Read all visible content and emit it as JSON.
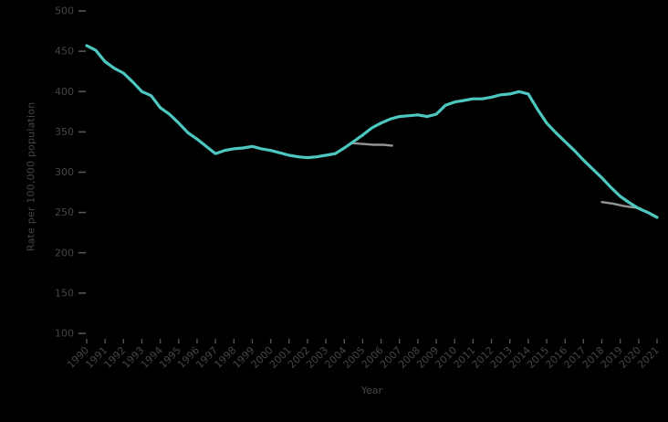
{
  "chart_data": {
    "type": "line",
    "title": "",
    "xlabel": "Year",
    "ylabel": "Rate per 100,000 population",
    "xlim": [
      1990,
      2021
    ],
    "ylim": [
      100,
      500
    ],
    "grid": false,
    "legend": "none",
    "background_color": "#000000",
    "text_color": "#454545",
    "tick_color": "#555555",
    "x_ticks": [
      "1990",
      "1991",
      "1992",
      "1993",
      "1994",
      "1995",
      "1996",
      "1997",
      "1998",
      "1999",
      "2000",
      "2001",
      "2002",
      "2003",
      "2004",
      "2005",
      "2006",
      "2007",
      "2008",
      "2009",
      "2010",
      "2011",
      "2012",
      "2013",
      "2014",
      "2015",
      "2016",
      "2017",
      "2018",
      "2019",
      "2020",
      "2021"
    ],
    "y_ticks": [
      500,
      450,
      400,
      350,
      300,
      250,
      200,
      150,
      100
    ],
    "series": [
      {
        "name": "secondary-gray-segment-a",
        "color": "#8f9494",
        "stroke_width": 2.4,
        "x": [
          2004.4,
          2005.0,
          2005.6,
          2006.1,
          2006.6
        ],
        "y": [
          336,
          335,
          334,
          334,
          333
        ]
      },
      {
        "name": "secondary-gray-segment-b",
        "color": "#8f9494",
        "stroke_width": 2.4,
        "x": [
          2018.0,
          2018.6,
          2019.2,
          2019.8,
          2020.1
        ],
        "y": [
          263,
          261,
          258,
          256,
          255
        ]
      },
      {
        "name": "main-series",
        "color": "#4cc8c0",
        "stroke_width": 3.2,
        "x": [
          1990.0,
          1990.5,
          1991.0,
          1991.5,
          1992.0,
          1992.5,
          1993.0,
          1993.5,
          1994.0,
          1994.5,
          1995.0,
          1995.5,
          1996.0,
          1996.5,
          1997.0,
          1997.5,
          1998.0,
          1998.5,
          1999.0,
          1999.5,
          2000.0,
          2000.5,
          2001.0,
          2001.5,
          2002.0,
          2002.5,
          2003.0,
          2003.5,
          2004.0,
          2004.5,
          2005.0,
          2005.5,
          2006.0,
          2006.5,
          2007.0,
          2007.5,
          2008.0,
          2008.5,
          2009.0,
          2009.5,
          2010.0,
          2010.5,
          2011.0,
          2011.5,
          2012.0,
          2012.5,
          2013.0,
          2013.5,
          2014.0,
          2014.5,
          2015.0,
          2015.5,
          2016.0,
          2016.5,
          2017.0,
          2017.5,
          2018.0,
          2018.5,
          2019.0,
          2019.5,
          2020.0,
          2020.5,
          2021.0
        ],
        "y": [
          457,
          451,
          437,
          429,
          423,
          412,
          400,
          395,
          380,
          372,
          361,
          349,
          341,
          332,
          323,
          327,
          329,
          330,
          332,
          329,
          327,
          324,
          321,
          319,
          318,
          319,
          321,
          323,
          330,
          338,
          346,
          355,
          361,
          366,
          369,
          370,
          371,
          369,
          372,
          383,
          387,
          389,
          391,
          391,
          393,
          396,
          397,
          400,
          397,
          378,
          361,
          349,
          338,
          327,
          315,
          304,
          293,
          281,
          270,
          262,
          255,
          250,
          244
        ]
      }
    ]
  }
}
